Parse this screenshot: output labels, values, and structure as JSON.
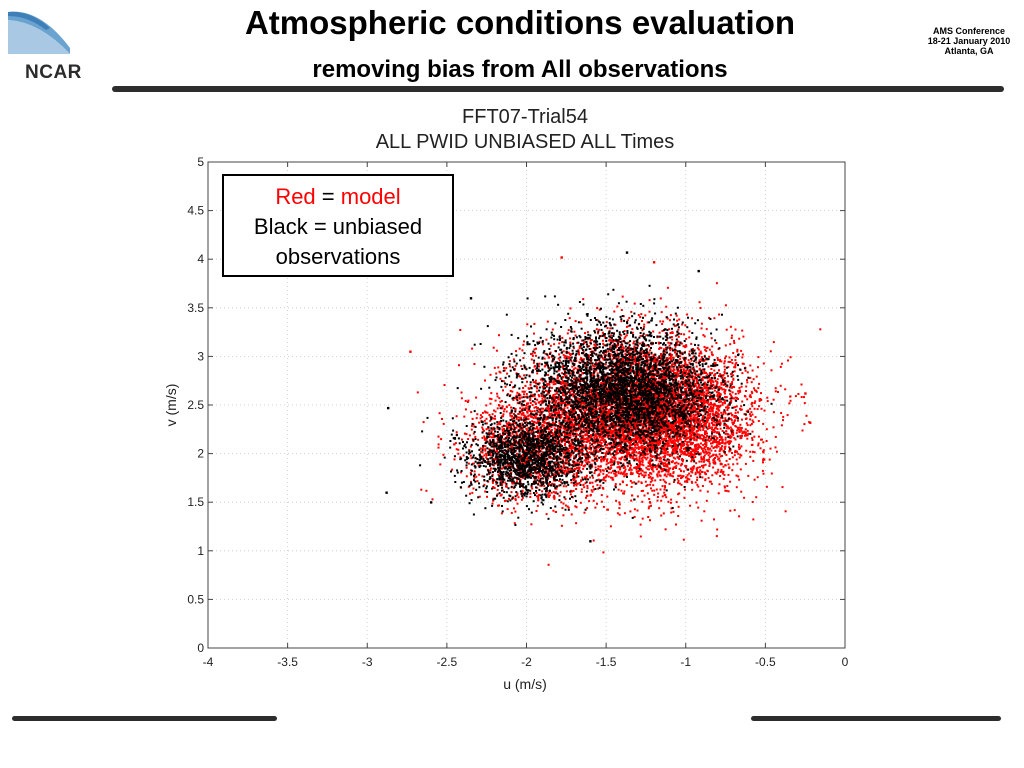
{
  "slide": {
    "title": "Atmospheric conditions evaluation",
    "subtitle": "removing bias from All observations",
    "logo_text": "NCAR",
    "conference": {
      "line1": "AMS Conference",
      "line2": "18-21 January 2010",
      "line3": "Atlanta, GA"
    }
  },
  "legend": {
    "red_word": "Red",
    "eq1": " = ",
    "model_word": "model",
    "line2": "Black = unbiased",
    "line3": "observations"
  },
  "chart_data": {
    "type": "scatter",
    "title": "FFT07-Trial54",
    "subtitle": "ALL PWID UNBIASED ALL Times",
    "xlabel": "u (m/s)",
    "ylabel": "v (m/s)",
    "xlim": [
      -4,
      0
    ],
    "ylim": [
      0,
      5
    ],
    "xticks": [
      -4,
      -3.5,
      -3,
      -2.5,
      -2,
      -1.5,
      -1,
      -0.5,
      0
    ],
    "yticks": [
      0,
      0.5,
      1,
      1.5,
      2,
      2.5,
      3,
      3.5,
      4,
      4.5,
      5
    ],
    "grid": true,
    "legend_position": "top-left",
    "series": [
      {
        "color": "#ff0000",
        "clusters": [
          {
            "cx": -1.35,
            "cy": 2.45,
            "sx": 0.33,
            "sy": 0.38,
            "n": 5200
          },
          {
            "cx": -1.05,
            "cy": 2.35,
            "sx": 0.25,
            "sy": 0.33,
            "n": 2000
          },
          {
            "cx": -1.95,
            "cy": 2.05,
            "sx": 0.22,
            "sy": 0.27,
            "n": 1300
          }
        ],
        "outliers": [
          [
            -2.73,
            3.05
          ],
          [
            -1.78,
            4.02
          ],
          [
            -1.2,
            3.97
          ],
          [
            -0.22,
            2.32
          ],
          [
            -0.25,
            2.62
          ]
        ]
      },
      {
        "color": "#000000",
        "clusters": [
          {
            "cx": -1.45,
            "cy": 2.65,
            "sx": 0.28,
            "sy": 0.33,
            "n": 2800
          },
          {
            "cx": -2.0,
            "cy": 1.95,
            "sx": 0.18,
            "sy": 0.2,
            "n": 1500
          },
          {
            "cx": -1.2,
            "cy": 2.6,
            "sx": 0.22,
            "sy": 0.28,
            "n": 900
          }
        ],
        "outliers": [
          [
            -2.87,
            2.47
          ],
          [
            -2.88,
            1.6
          ],
          [
            -2.6,
            1.5
          ],
          [
            -1.37,
            4.07
          ],
          [
            -0.92,
            3.88
          ],
          [
            -2.35,
            3.6
          ],
          [
            -1.6,
            1.1
          ]
        ]
      }
    ]
  }
}
